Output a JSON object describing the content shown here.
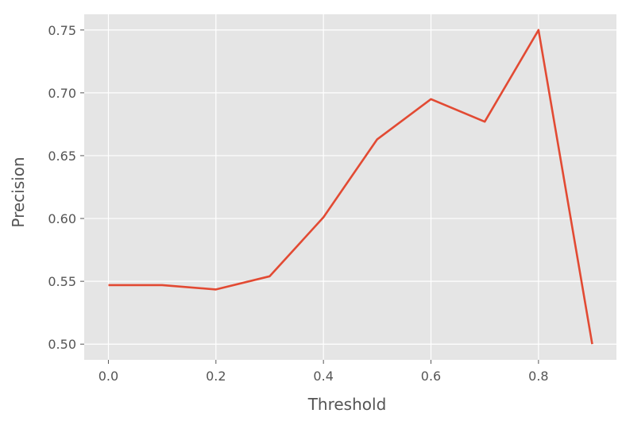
{
  "chart_data": {
    "type": "line",
    "title": "",
    "xlabel": "Threshold",
    "ylabel": "Precision",
    "xlim": [
      -0.045,
      0.945
    ],
    "ylim": [
      0.4875,
      0.7625
    ],
    "xticks": [
      0.0,
      0.2,
      0.4,
      0.6,
      0.8
    ],
    "xtick_labels": [
      "0.0",
      "0.2",
      "0.4",
      "0.6",
      "0.8"
    ],
    "yticks": [
      0.5,
      0.55,
      0.6,
      0.65,
      0.7,
      0.75
    ],
    "ytick_labels": [
      "0.50",
      "0.55",
      "0.60",
      "0.65",
      "0.70",
      "0.75"
    ],
    "grid": true,
    "series": [
      {
        "x": [
          0.0,
          0.1,
          0.2,
          0.3,
          0.4,
          0.5,
          0.6,
          0.7,
          0.8,
          0.9
        ],
        "values": [
          0.547,
          0.547,
          0.5435,
          0.554,
          0.601,
          0.663,
          0.695,
          0.677,
          0.75,
          0.5
        ],
        "color": "#E24A33"
      }
    ],
    "colors": {
      "plot_background": "#E5E5E5",
      "grid": "#FFFFFF",
      "text": "#555555"
    }
  }
}
